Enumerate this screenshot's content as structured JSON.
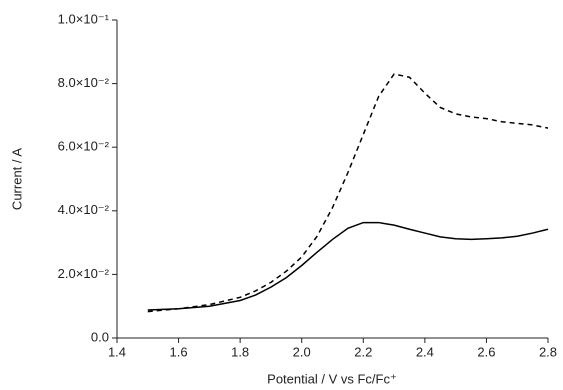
{
  "chart_data": {
    "type": "line",
    "x_label": "Potential / V vs Fc/Fc⁺",
    "y_label": "Current / A",
    "x": [
      1.5,
      1.6,
      1.7,
      1.8,
      1.85,
      1.9,
      1.95,
      2.0,
      2.05,
      2.1,
      2.15,
      2.2,
      2.25,
      2.3,
      2.35,
      2.4,
      2.45,
      2.5,
      2.55,
      2.6,
      2.65,
      2.7,
      2.75,
      2.8
    ],
    "series": [
      {
        "color": "#000000",
        "dash": false,
        "values": [
          0.0088,
          0.0092,
          0.01,
          0.0118,
          0.0135,
          0.016,
          0.019,
          0.0228,
          0.027,
          0.031,
          0.0345,
          0.0363,
          0.0363,
          0.0355,
          0.0342,
          0.033,
          0.0318,
          0.0312,
          0.031,
          0.0312,
          0.0315,
          0.032,
          0.033,
          0.0342
        ]
      },
      {
        "color": "#000000",
        "dash": true,
        "values": [
          0.0083,
          0.0092,
          0.0105,
          0.0128,
          0.0148,
          0.0175,
          0.021,
          0.0255,
          0.032,
          0.041,
          0.052,
          0.064,
          0.076,
          0.083,
          0.082,
          0.077,
          0.0725,
          0.0705,
          0.0695,
          0.069,
          0.068,
          0.0675,
          0.067,
          0.066
        ]
      }
    ],
    "xlim": [
      1.4,
      2.8
    ],
    "xticks": [
      1.4,
      1.6,
      1.8,
      {
        "value": 2,
        "label": "2.0"
      },
      2.2,
      2.4,
      2.6,
      2.8
    ],
    "ylim": [
      0,
      0.1
    ],
    "yticks": [
      {
        "value": 0,
        "label": "0.0"
      },
      {
        "value": 0.02,
        "label": "2.0×10⁻²"
      },
      {
        "value": 0.04,
        "label": "4.0×10⁻²"
      },
      {
        "value": 0.06,
        "label": "6.0×10⁻²"
      },
      {
        "value": 0.08,
        "label": "8.0×10⁻²"
      },
      {
        "value": 0.1,
        "label": "1.0×10⁻¹"
      }
    ],
    "grid": false
  }
}
